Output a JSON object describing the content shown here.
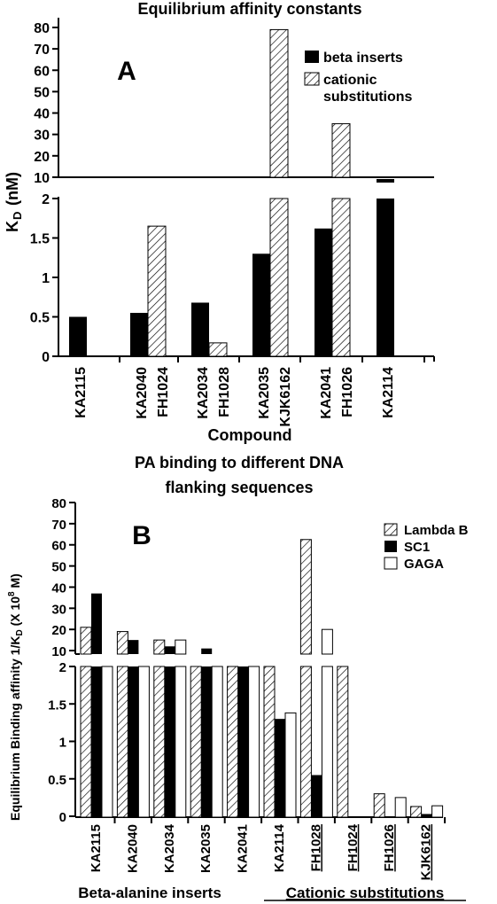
{
  "colors": {
    "ink": "#000000",
    "paper": "#ffffff",
    "hatch": "#000000"
  },
  "chart_data": [
    {
      "type": "bar",
      "panel_label": "A",
      "title": "Equilibrium affinity constants",
      "xlabel": "Compound",
      "ylabel_main": "K",
      "ylabel_sub": "D",
      "ylabel_unit": "(nM)",
      "axis_break": true,
      "ylim_lower": [
        0,
        2
      ],
      "ylim_upper": [
        2,
        80
      ],
      "yticks_lower": [
        "0",
        "0.5",
        "1",
        "1.5",
        "2"
      ],
      "yticks_upper": [
        "10",
        "20",
        "30",
        "40",
        "50",
        "60",
        "70",
        "80"
      ],
      "legend": [
        "beta inserts",
        "cationic",
        "substitutions"
      ],
      "legend_position": "top-right",
      "categories": [
        [
          "KA2115"
        ],
        [
          "KA2040",
          "FH1024"
        ],
        [
          "KA2034",
          "FH1028"
        ],
        [
          "KA2035",
          "KJK6162"
        ],
        [
          "KA2041",
          "FH1026"
        ],
        [
          "KA2114"
        ]
      ],
      "series": [
        {
          "name": "beta inserts",
          "values": [
            0.5,
            0.55,
            0.68,
            1.3,
            1.62,
            4.5
          ]
        },
        {
          "name": "cationic substitutions",
          "values": [
            null,
            1.65,
            0.17,
            79,
            35,
            null
          ]
        }
      ]
    },
    {
      "type": "bar",
      "panel_label": "B",
      "title": [
        "PA binding to different DNA",
        "flanking sequences"
      ],
      "ylabel_main": "Equilibrium Binding affinity 1/K",
      "ylabel_sub": "D",
      "ylabel_unit_prefix": "(X 10",
      "ylabel_sup": "8",
      "ylabel_unit_suffix": "M)",
      "axis_break": true,
      "ylim_lower": [
        0,
        2
      ],
      "ylim_upper": [
        2,
        80
      ],
      "yticks_lower": [
        "0",
        "0.5",
        "1",
        "1.5",
        "2"
      ],
      "yticks_upper": [
        "10",
        "20",
        "30",
        "40",
        "50",
        "60",
        "70",
        "80"
      ],
      "legend": [
        "Lambda B",
        "SC1",
        "GAGA"
      ],
      "legend_position": "top-right",
      "categories": [
        "KA2115",
        "KA2040",
        "KA2034",
        "KA2035",
        "KA2041",
        "KA2114",
        "FH1028",
        "FH1024",
        "FH1026",
        "KJK6162"
      ],
      "group_labels": [
        "Beta-alanine inserts",
        "Cationic substitutions"
      ],
      "series": [
        {
          "name": "Lambda B",
          "values": [
            21,
            19,
            15,
            8,
            7,
            2.3,
            62.5,
            6.5,
            0.3,
            0.13
          ]
        },
        {
          "name": "SC1",
          "values": [
            37,
            15,
            12,
            11,
            5,
            1.3,
            0.55,
            0,
            0,
            0.03
          ]
        },
        {
          "name": "GAGA",
          "values": [
            6.5,
            6,
            15,
            8,
            4.5,
            1.38,
            20,
            0,
            0.25,
            0.14
          ]
        }
      ]
    }
  ]
}
